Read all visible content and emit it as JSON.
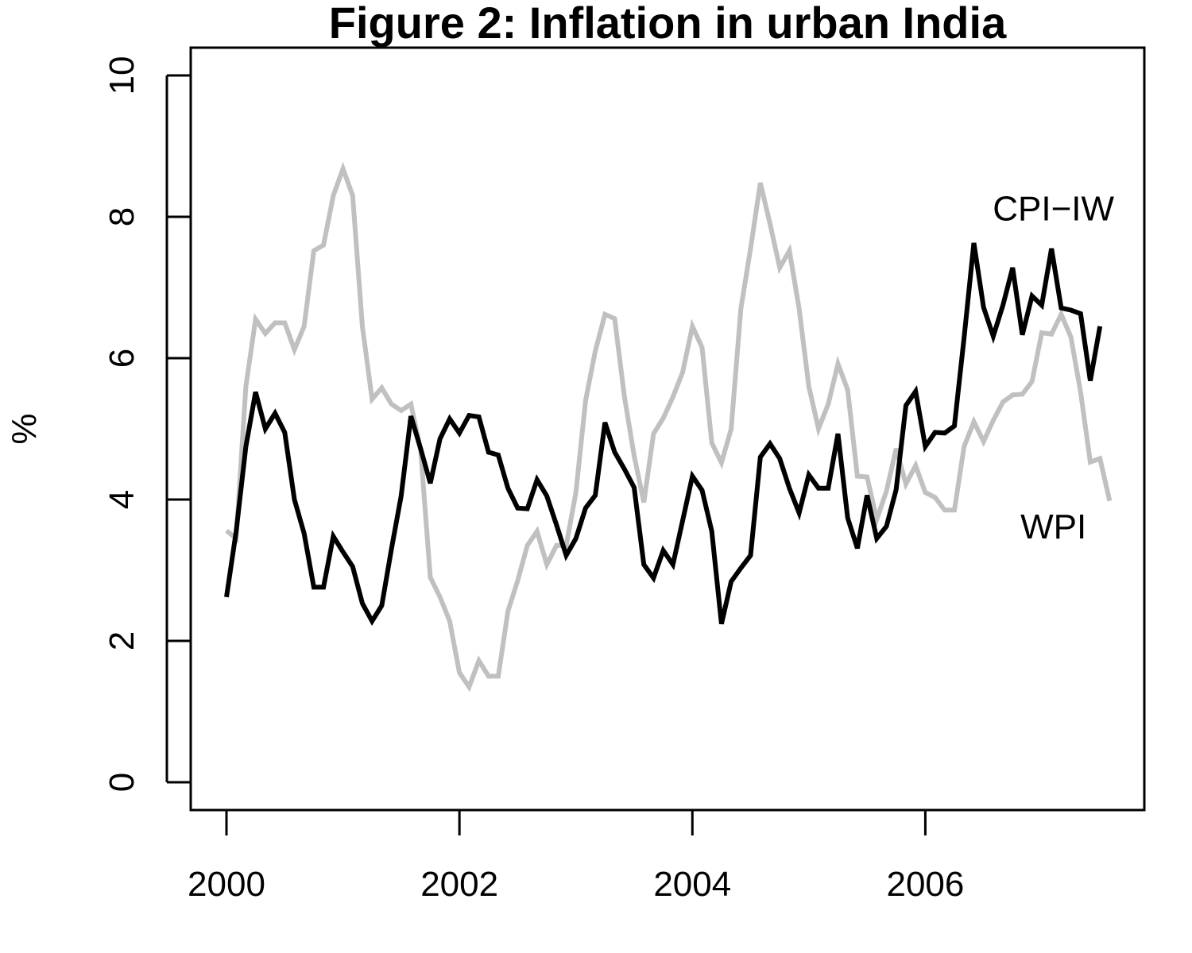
{
  "chart_data": {
    "type": "line",
    "title": "Figure 2: Inflation in urban India",
    "ylabel": "%",
    "xlabel": "",
    "xlim": [
      2000,
      2007.58
    ],
    "ylim": [
      0,
      10
    ],
    "x_ticks": [
      2000,
      2002,
      2004,
      2006
    ],
    "y_ticks": [
      0,
      2,
      4,
      6,
      8,
      10
    ],
    "grid": false,
    "legend": "none",
    "annotations": [
      {
        "text": "CPI−IW",
        "x": 2007.1,
        "y": 7.95
      },
      {
        "text": "WPI",
        "x": 2007.1,
        "y": 3.45
      }
    ],
    "series": [
      {
        "name": "CPI−IW",
        "color": "#000000",
        "x_start": 2000.0,
        "x_step": 0.08333,
        "values": [
          2.62,
          3.55,
          4.75,
          5.52,
          5.0,
          5.22,
          4.95,
          4.0,
          3.52,
          2.76,
          2.76,
          3.48,
          3.26,
          3.05,
          2.53,
          2.28,
          2.5,
          3.3,
          4.05,
          5.18,
          4.72,
          4.23,
          4.86,
          5.14,
          4.94,
          5.19,
          5.17,
          4.67,
          4.63,
          4.16,
          3.88,
          3.87,
          4.28,
          4.05,
          3.64,
          3.21,
          3.45,
          3.88,
          4.06,
          5.09,
          4.67,
          4.43,
          4.17,
          3.08,
          2.89,
          3.28,
          3.08,
          3.7,
          4.33,
          4.13,
          3.55,
          2.24,
          2.84,
          3.03,
          3.21,
          4.6,
          4.79,
          4.58,
          4.16,
          3.81,
          4.35,
          4.16,
          4.16,
          4.93,
          3.74,
          3.31,
          4.06,
          3.45,
          3.62,
          4.14,
          5.33,
          5.53,
          4.75,
          4.95,
          4.94,
          5.04,
          6.29,
          7.63,
          6.72,
          6.31,
          6.75,
          7.28,
          6.33,
          6.88,
          6.75,
          7.55,
          6.71,
          6.68,
          6.63,
          5.68,
          6.45
        ]
      },
      {
        "name": "WPI",
        "color": "#c0c0c0",
        "x_start": 2000.0,
        "x_step": 0.08333,
        "values": [
          3.56,
          3.45,
          5.6,
          6.55,
          6.35,
          6.5,
          6.5,
          6.12,
          6.45,
          7.52,
          7.6,
          8.3,
          8.68,
          8.3,
          6.45,
          5.42,
          5.58,
          5.35,
          5.26,
          5.35,
          4.7,
          2.9,
          2.62,
          2.28,
          1.55,
          1.35,
          1.72,
          1.5,
          1.5,
          2.42,
          2.85,
          3.35,
          3.55,
          3.08,
          3.35,
          3.35,
          4.1,
          5.4,
          6.1,
          6.62,
          6.56,
          5.45,
          4.62,
          3.96,
          4.93,
          5.15,
          5.45,
          5.8,
          6.45,
          6.15,
          4.8,
          4.52,
          5.0,
          6.7,
          7.55,
          8.48,
          7.9,
          7.28,
          7.52,
          6.7,
          5.6,
          5.0,
          5.35,
          5.92,
          5.55,
          4.33,
          4.32,
          3.72,
          4.12,
          4.72,
          4.22,
          4.48,
          4.1,
          4.03,
          3.85,
          3.85,
          4.75,
          5.1,
          4.82,
          5.12,
          5.38,
          5.48,
          5.49,
          5.67,
          6.36,
          6.34,
          6.62,
          6.3,
          5.52,
          4.53,
          4.58,
          3.98
        ]
      }
    ]
  }
}
